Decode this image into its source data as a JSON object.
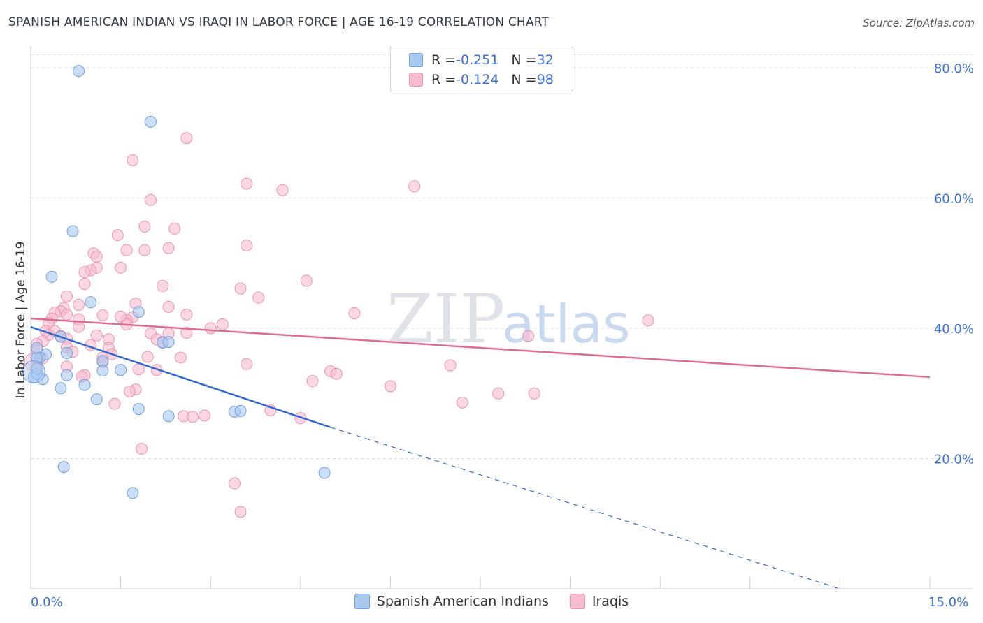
{
  "title": "SPANISH AMERICAN INDIAN VS IRAQI IN LABOR FORCE | AGE 16-19 CORRELATION CHART",
  "source": "Source: ZipAtlas.com",
  "watermark": {
    "zip": "ZIP",
    "atlas": "atlas"
  },
  "legend": {
    "rows": [
      {
        "r_label": "R = ",
        "r_value": "-0.251",
        "n_label": "N = ",
        "n_value": "32",
        "color": "#a9c8f0"
      },
      {
        "r_label": "R = ",
        "r_value": "-0.124",
        "n_label": "N = ",
        "n_value": "98",
        "color": "#f7bcd0"
      }
    ]
  },
  "bottom_legend": [
    {
      "label": "Spanish American Indians",
      "color": "#a9c8f0"
    },
    {
      "label": "Iraqis",
      "color": "#f7bcd0"
    }
  ],
  "colors": {
    "blue_fill": "#a9c8f0",
    "blue_stroke": "#6f9fdc",
    "blue_line": "#3068cc",
    "pink_fill": "#f7bcd0",
    "pink_stroke": "#ec93b0",
    "pink_line": "#e06b94",
    "axis_text": "#3b6fd4",
    "grid": "#d9dde3"
  },
  "chart_data": {
    "type": "scatter",
    "title": "SPANISH AMERICAN INDIAN VS IRAQI IN LABOR FORCE | AGE 16-19 CORRELATION CHART",
    "xlabel": "",
    "ylabel": "In Labor Force | Age 16-19",
    "xlim": [
      0,
      15
    ],
    "ylim": [
      0,
      82
    ],
    "x_tick_labels": [
      "0.0%",
      "15.0%"
    ],
    "y_ticks": [
      20,
      40,
      60,
      80
    ],
    "y_tick_labels": [
      "20.0%",
      "40.0%",
      "60.0%",
      "80.0%"
    ],
    "grid": true,
    "legend_position": "top-center",
    "series": [
      {
        "name": "Spanish American Indians",
        "r": -0.251,
        "n": 32,
        "trend": {
          "x": [
            0.0,
            5.0
          ],
          "y": [
            40.2,
            24.8
          ],
          "dashed_to": [
            13.5,
            0.0
          ]
        },
        "points": [
          [
            0.8,
            79.5
          ],
          [
            2.0,
            71.7
          ],
          [
            0.7,
            54.9
          ],
          [
            0.35,
            47.9
          ],
          [
            1.0,
            44.0
          ],
          [
            1.8,
            42.5
          ],
          [
            0.25,
            36.0
          ],
          [
            0.15,
            35.5
          ],
          [
            0.6,
            36.2
          ],
          [
            1.2,
            35.0
          ],
          [
            0.2,
            32.2
          ],
          [
            0.6,
            32.8
          ],
          [
            0.5,
            30.8
          ],
          [
            1.2,
            33.5
          ],
          [
            0.9,
            31.3
          ],
          [
            0.5,
            38.7
          ],
          [
            2.2,
            37.8
          ],
          [
            1.5,
            33.6
          ],
          [
            2.3,
            37.9
          ],
          [
            0.05,
            32.5
          ],
          [
            0.1,
            33.0
          ],
          [
            0.1,
            35.5
          ],
          [
            1.1,
            29.1
          ],
          [
            1.8,
            27.6
          ],
          [
            2.3,
            26.5
          ],
          [
            3.4,
            27.2
          ],
          [
            3.5,
            27.3
          ],
          [
            0.55,
            18.7
          ],
          [
            4.9,
            17.8
          ],
          [
            1.7,
            14.7
          ],
          [
            0.1,
            37.0
          ],
          [
            0.1,
            33.8
          ]
        ]
      },
      {
        "name": "Iraqis",
        "r": -0.124,
        "n": 98,
        "trend": {
          "x": [
            0.0,
            15.0
          ],
          "y": [
            41.5,
            32.5
          ]
        },
        "points": [
          [
            2.6,
            69.2
          ],
          [
            1.7,
            65.8
          ],
          [
            3.6,
            62.2
          ],
          [
            4.2,
            61.2
          ],
          [
            6.4,
            61.8
          ],
          [
            2.0,
            59.7
          ],
          [
            1.9,
            55.6
          ],
          [
            2.4,
            55.3
          ],
          [
            1.45,
            54.3
          ],
          [
            2.3,
            52.3
          ],
          [
            1.9,
            52.0
          ],
          [
            1.6,
            52.0
          ],
          [
            1.05,
            51.5
          ],
          [
            3.6,
            52.7
          ],
          [
            1.1,
            51.0
          ],
          [
            1.1,
            49.3
          ],
          [
            1.5,
            49.3
          ],
          [
            1.0,
            48.9
          ],
          [
            0.9,
            48.6
          ],
          [
            4.6,
            47.3
          ],
          [
            0.9,
            46.8
          ],
          [
            2.2,
            46.5
          ],
          [
            3.5,
            46.1
          ],
          [
            3.8,
            44.7
          ],
          [
            0.6,
            44.9
          ],
          [
            1.75,
            43.8
          ],
          [
            0.8,
            43.6
          ],
          [
            2.3,
            43.3
          ],
          [
            0.55,
            43.1
          ],
          [
            0.5,
            42.6
          ],
          [
            0.4,
            42.4
          ],
          [
            0.6,
            42.1
          ],
          [
            1.2,
            42.0
          ],
          [
            2.6,
            42.1
          ],
          [
            1.7,
            41.7
          ],
          [
            5.4,
            42.3
          ],
          [
            0.35,
            41.5
          ],
          [
            1.6,
            41.3
          ],
          [
            0.8,
            41.4
          ],
          [
            0.3,
            40.8
          ],
          [
            1.6,
            40.6
          ],
          [
            0.8,
            40.2
          ],
          [
            3.2,
            40.6
          ],
          [
            3.0,
            40.0
          ],
          [
            2.0,
            39.2
          ],
          [
            2.3,
            39.2
          ],
          [
            0.25,
            39.6
          ],
          [
            0.3,
            39.0
          ],
          [
            0.4,
            39.6
          ],
          [
            0.5,
            38.8
          ],
          [
            1.1,
            38.9
          ],
          [
            2.6,
            39.3
          ],
          [
            0.2,
            38.0
          ],
          [
            0.6,
            38.4
          ],
          [
            1.3,
            38.3
          ],
          [
            2.1,
            38.3
          ],
          [
            0.1,
            37.6
          ],
          [
            0.6,
            37.1
          ],
          [
            1.0,
            37.4
          ],
          [
            1.3,
            37.0
          ],
          [
            2.2,
            37.9
          ],
          [
            0.1,
            36.6
          ],
          [
            0.7,
            36.4
          ],
          [
            1.35,
            36.0
          ],
          [
            2.5,
            35.5
          ],
          [
            1.95,
            35.6
          ],
          [
            1.2,
            35.5
          ],
          [
            0.2,
            35.4
          ],
          [
            0.1,
            34.9
          ],
          [
            1.2,
            34.8
          ],
          [
            3.6,
            34.5
          ],
          [
            0.6,
            34.1
          ],
          [
            1.8,
            33.7
          ],
          [
            2.1,
            33.6
          ],
          [
            5.0,
            33.4
          ],
          [
            5.1,
            33.0
          ],
          [
            7.0,
            34.3
          ],
          [
            0.9,
            32.8
          ],
          [
            0.85,
            32.6
          ],
          [
            4.7,
            31.9
          ],
          [
            6.0,
            31.1
          ],
          [
            1.75,
            30.6
          ],
          [
            1.65,
            30.3
          ],
          [
            7.8,
            30.0
          ],
          [
            8.4,
            30.0
          ],
          [
            7.2,
            28.6
          ],
          [
            1.4,
            28.4
          ],
          [
            4.0,
            27.4
          ],
          [
            2.55,
            26.5
          ],
          [
            2.7,
            26.4
          ],
          [
            2.9,
            26.6
          ],
          [
            4.5,
            26.2
          ],
          [
            8.3,
            38.8
          ],
          [
            10.3,
            41.2
          ],
          [
            1.85,
            21.5
          ],
          [
            3.4,
            16.2
          ],
          [
            3.5,
            11.8
          ],
          [
            1.5,
            41.8
          ]
        ]
      }
    ]
  }
}
